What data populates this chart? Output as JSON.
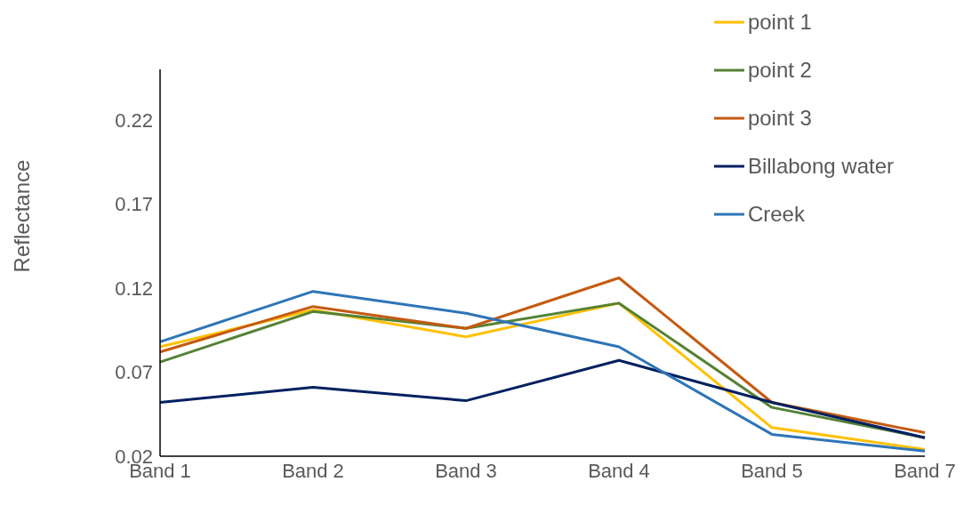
{
  "chart_data": {
    "type": "line",
    "ylabel": "Reflectance",
    "categories": [
      "Band 1",
      "Band 2",
      "Band 3",
      "Band 4",
      "Band 5",
      "Band 7"
    ],
    "ylim": [
      0.02,
      0.25
    ],
    "yticks": [
      0.02,
      0.07,
      0.12,
      0.17,
      0.22
    ],
    "grid": false,
    "legend": "top right",
    "marker": "none",
    "series": [
      {
        "name": "point 1",
        "color": "#ffc000",
        "values": [
          0.085,
          0.107,
          0.091,
          0.111,
          0.037,
          0.024
        ]
      },
      {
        "name": "point 2",
        "color": "#548235",
        "values": [
          0.076,
          0.106,
          0.096,
          0.111,
          0.049,
          0.031
        ]
      },
      {
        "name": "point 3",
        "color": "#c55a11",
        "values": [
          0.082,
          0.109,
          0.096,
          0.126,
          0.052,
          0.034
        ]
      },
      {
        "name": "Billabong water",
        "color": "#002060",
        "values": [
          0.052,
          0.061,
          0.053,
          0.077,
          0.052,
          0.031
        ]
      },
      {
        "name": "Creek",
        "color": "#2e75b6",
        "values": [
          0.088,
          0.118,
          0.105,
          0.085,
          0.033,
          0.023
        ]
      }
    ]
  }
}
